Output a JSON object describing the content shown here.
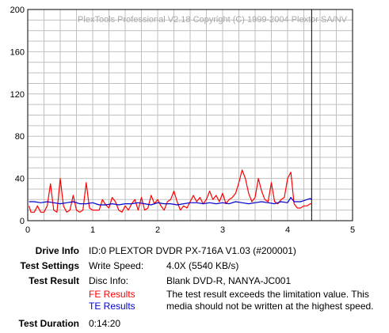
{
  "colors": {
    "fe": "#ff0000",
    "te": "#0000cc",
    "grid": "#c0c0c0",
    "marker": "#000000"
  },
  "chart_data": {
    "type": "line",
    "watermark": "PlexTools Professional V2.18 Copyright (C) 1999-2004 Plextor SA/NV",
    "xlim": [
      0,
      5
    ],
    "ylim": [
      0,
      200
    ],
    "xticks": [
      0,
      1,
      2,
      3,
      4,
      5
    ],
    "yticks": [
      0,
      40,
      80,
      120,
      160,
      200
    ],
    "grid": true,
    "end_marker_x": 4.37,
    "series": [
      {
        "name": "FE Results",
        "x": [
          0.02,
          0.05,
          0.1,
          0.15,
          0.2,
          0.25,
          0.3,
          0.35,
          0.4,
          0.45,
          0.5,
          0.55,
          0.6,
          0.65,
          0.7,
          0.75,
          0.8,
          0.85,
          0.9,
          0.95,
          1.0,
          1.05,
          1.1,
          1.15,
          1.2,
          1.25,
          1.3,
          1.35,
          1.4,
          1.45,
          1.5,
          1.55,
          1.6,
          1.65,
          1.7,
          1.75,
          1.8,
          1.85,
          1.9,
          1.95,
          2.0,
          2.05,
          2.1,
          2.15,
          2.2,
          2.25,
          2.3,
          2.35,
          2.4,
          2.45,
          2.5,
          2.55,
          2.6,
          2.65,
          2.7,
          2.75,
          2.8,
          2.85,
          2.9,
          2.95,
          3.0,
          3.05,
          3.1,
          3.15,
          3.2,
          3.25,
          3.3,
          3.35,
          3.4,
          3.45,
          3.5,
          3.55,
          3.6,
          3.65,
          3.7,
          3.75,
          3.8,
          3.85,
          3.9,
          3.95,
          4.0,
          4.05,
          4.1,
          4.15,
          4.2,
          4.25,
          4.3,
          4.35,
          4.37
        ],
        "values": [
          14,
          8,
          8,
          14,
          8,
          8,
          14,
          35,
          10,
          8,
          40,
          14,
          8,
          10,
          24,
          10,
          8,
          10,
          36,
          12,
          10,
          10,
          10,
          20,
          15,
          12,
          22,
          18,
          10,
          8,
          14,
          10,
          16,
          20,
          10,
          22,
          10,
          12,
          24,
          16,
          20,
          14,
          10,
          18,
          20,
          28,
          18,
          10,
          14,
          12,
          18,
          24,
          18,
          22,
          16,
          20,
          28,
          20,
          24,
          18,
          26,
          16,
          20,
          22,
          26,
          36,
          48,
          40,
          26,
          18,
          22,
          40,
          28,
          20,
          18,
          36,
          18,
          16,
          20,
          22,
          40,
          46,
          16,
          12,
          12,
          14,
          14,
          16,
          16
        ]
      },
      {
        "name": "TE Results",
        "x": [
          0.02,
          0.1,
          0.2,
          0.3,
          0.4,
          0.5,
          0.6,
          0.7,
          0.8,
          0.9,
          1.0,
          1.1,
          1.2,
          1.3,
          1.4,
          1.5,
          1.6,
          1.7,
          1.8,
          1.9,
          2.0,
          2.1,
          2.2,
          2.3,
          2.4,
          2.5,
          2.6,
          2.7,
          2.8,
          2.9,
          3.0,
          3.1,
          3.2,
          3.3,
          3.4,
          3.5,
          3.6,
          3.7,
          3.8,
          3.9,
          4.0,
          4.05,
          4.1,
          4.2,
          4.3,
          4.35,
          4.37
        ],
        "values": [
          18,
          18,
          17,
          18,
          17,
          16,
          17,
          18,
          16,
          16,
          17,
          15,
          15,
          16,
          15,
          16,
          16,
          17,
          16,
          15,
          17,
          16,
          16,
          15,
          16,
          17,
          17,
          16,
          17,
          16,
          17,
          16,
          18,
          17,
          16,
          17,
          18,
          17,
          16,
          18,
          17,
          22,
          18,
          18,
          20,
          21,
          20
        ]
      }
    ]
  },
  "info": {
    "drive_info_label": "Drive Info",
    "drive_info_value": "ID:0 PLEXTOR DVDR PX-716A V1.03 (#200001)",
    "test_settings_label": "Test Settings",
    "write_speed_label": "Write Speed:",
    "write_speed_value": "4.0X (5540 KB/s)",
    "test_result_label": "Test Result",
    "disc_info_label": "Disc Info:",
    "disc_info_value": "Blank DVD-R, NANYA-JC001",
    "fe_results_label": "FE Results",
    "te_results_label": "TE Results",
    "result_message": "The test result exceeds the limitation value. This media should not be written at the highest speed.",
    "test_duration_label": "Test Duration",
    "test_duration_value": "0:14:20"
  }
}
